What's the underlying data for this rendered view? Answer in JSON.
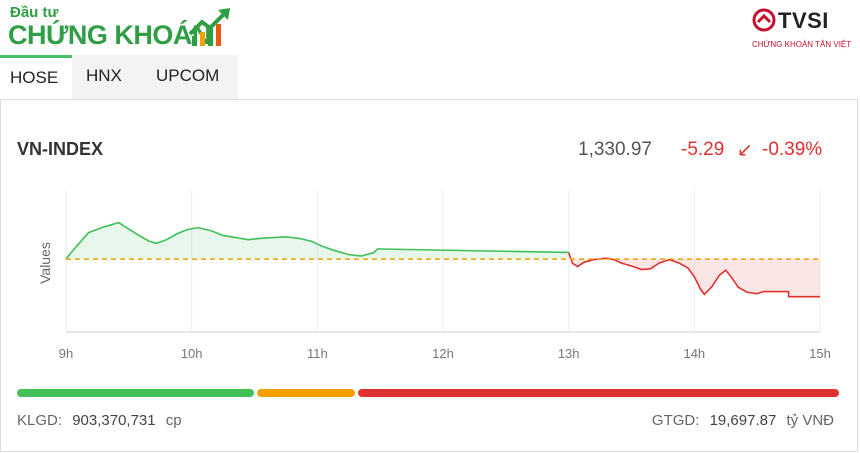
{
  "brand": {
    "small": "Đầu tư",
    "big": "CHỨNG KHOÁN"
  },
  "broker": {
    "name": "TVSI",
    "tagline": "CHỨNG KHOÁN TÂN VIỆT",
    "color": "#c8102e"
  },
  "tabs": [
    {
      "label": "HOSE",
      "active": true
    },
    {
      "label": "HNX",
      "active": false
    },
    {
      "label": "UPCOM",
      "active": false
    }
  ],
  "index": {
    "name": "VN-INDEX",
    "value": "1,330.97",
    "change": "-5.29",
    "arrow": "↙",
    "percent": "-0.39%"
  },
  "chart_data": {
    "type": "line",
    "ylabel": "Values",
    "x_ticks": [
      "9h",
      "10h",
      "11h",
      "12h",
      "13h",
      "14h",
      "15h"
    ],
    "reference": 1336.26,
    "ylim": [
      1326,
      1346
    ],
    "colors": {
      "up": "#40c057",
      "down": "#e03131",
      "reference": "#f59f00"
    },
    "series": [
      {
        "values": [
          [
            9.0,
            1336.3
          ],
          [
            9.08,
            1338.0
          ],
          [
            9.18,
            1340.0
          ],
          [
            9.3,
            1340.8
          ],
          [
            9.42,
            1341.4
          ],
          [
            9.5,
            1340.5
          ],
          [
            9.58,
            1339.6
          ],
          [
            9.66,
            1338.8
          ],
          [
            9.72,
            1338.5
          ],
          [
            9.8,
            1339.0
          ],
          [
            9.88,
            1339.8
          ],
          [
            9.96,
            1340.4
          ],
          [
            10.05,
            1340.7
          ],
          [
            10.15,
            1340.3
          ],
          [
            10.25,
            1339.6
          ],
          [
            10.35,
            1339.3
          ],
          [
            10.45,
            1339.0
          ],
          [
            10.55,
            1339.2
          ],
          [
            10.65,
            1339.3
          ],
          [
            10.75,
            1339.4
          ],
          [
            10.85,
            1339.2
          ],
          [
            10.95,
            1338.8
          ],
          [
            11.05,
            1338.0
          ],
          [
            11.15,
            1337.4
          ],
          [
            11.25,
            1336.9
          ],
          [
            11.35,
            1336.7
          ],
          [
            11.45,
            1337.2
          ],
          [
            11.48,
            1337.7
          ],
          [
            13.0,
            1337.2
          ]
        ]
      },
      {
        "values": [
          [
            13.0,
            1337.2
          ],
          [
            13.03,
            1335.7
          ],
          [
            13.07,
            1335.2
          ],
          [
            13.12,
            1335.8
          ],
          [
            13.2,
            1336.2
          ],
          [
            13.3,
            1336.4
          ],
          [
            13.36,
            1336.2
          ],
          [
            13.42,
            1335.7
          ],
          [
            13.5,
            1335.3
          ],
          [
            13.58,
            1334.8
          ],
          [
            13.65,
            1334.9
          ],
          [
            13.72,
            1335.7
          ],
          [
            13.8,
            1336.2
          ],
          [
            13.88,
            1335.7
          ],
          [
            13.95,
            1335.0
          ],
          [
            14.0,
            1333.8
          ],
          [
            14.05,
            1332.0
          ],
          [
            14.08,
            1331.3
          ],
          [
            14.14,
            1332.4
          ],
          [
            14.2,
            1334.0
          ],
          [
            14.25,
            1334.7
          ],
          [
            14.3,
            1333.6
          ],
          [
            14.35,
            1332.3
          ],
          [
            14.42,
            1331.6
          ],
          [
            14.5,
            1331.4
          ],
          [
            14.55,
            1331.7
          ],
          [
            14.6,
            1331.7
          ],
          [
            14.75,
            1331.7
          ],
          [
            14.75,
            1330.97
          ],
          [
            15.0,
            1330.97
          ]
        ]
      }
    ]
  },
  "breadth": {
    "advance": 291,
    "unchanged": 119,
    "decline": 590,
    "colors": {
      "advance": "#40c057",
      "unchanged": "#f59f00",
      "decline": "#e03131"
    }
  },
  "footer": {
    "volume_label": "KLGD:",
    "volume_value": "903,370,731",
    "volume_unit": "cp",
    "value_label": "GTGD:",
    "value_value": "19,697.87",
    "value_unit": "tỷ VNĐ"
  }
}
